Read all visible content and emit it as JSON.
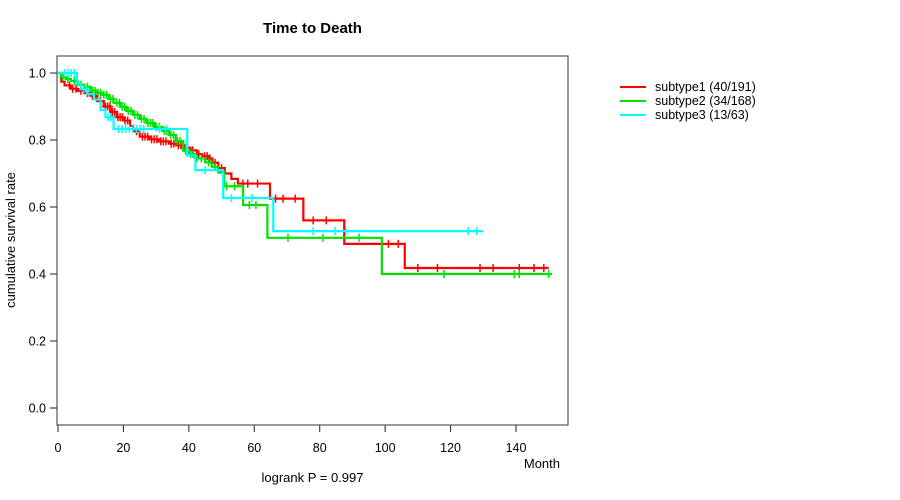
{
  "chart_data": {
    "type": "line",
    "variant": "kaplan-meier-step",
    "title": "Time to Death",
    "xlabel": "Month",
    "ylabel": "cumulative survival rate",
    "annotation": "logrank P = 0.997",
    "x_ticks": [
      0,
      20,
      40,
      60,
      80,
      100,
      120,
      140
    ],
    "y_ticks": [
      "0.0",
      "0.2",
      "0.4",
      "0.6",
      "0.8",
      "1.0"
    ],
    "xlim": [
      0,
      156
    ],
    "ylim": [
      -0.05,
      1.05
    ],
    "grid": false,
    "legend_position": "right-outside",
    "colors": {
      "axis_box": "#555555",
      "tick": "#333333",
      "text": "#000000",
      "background": "#ffffff"
    },
    "series": [
      {
        "name": "subtype1 (40/191)",
        "color": "#ff0000",
        "end_x": 150,
        "steps_x": [
          0,
          1,
          2,
          4,
          6,
          8,
          10,
          12,
          14,
          16,
          18,
          20,
          22,
          23,
          25,
          28,
          31,
          34,
          36.5,
          38.5,
          40.5,
          42.4,
          44,
          46,
          47.2,
          49,
          51,
          53,
          55,
          64.8,
          75,
          87.5,
          106
        ],
        "steps_y": [
          1.0,
          0.974,
          0.963,
          0.953,
          0.947,
          0.94,
          0.932,
          0.916,
          0.9,
          0.884,
          0.868,
          0.858,
          0.842,
          0.826,
          0.81,
          0.802,
          0.796,
          0.789,
          0.784,
          0.777,
          0.769,
          0.758,
          0.752,
          0.745,
          0.732,
          0.716,
          0.7,
          0.684,
          0.67,
          0.625,
          0.56,
          0.49,
          0.418
        ],
        "censor_x": [
          3.5,
          4.5,
          5.5,
          7,
          9,
          10.5,
          11.5,
          13,
          14.5,
          15.2,
          15.9,
          16.6,
          17.3,
          18.3,
          19,
          19.7,
          20.5,
          21.3,
          24,
          25.8,
          26.6,
          27.4,
          28.6,
          29.4,
          30.2,
          31.4,
          32.2,
          33,
          34.6,
          35.4,
          36.8,
          37.6,
          38.8,
          39.6,
          41.2,
          43,
          44.8,
          45.6,
          46.4,
          48,
          50,
          56.5,
          58,
          61,
          66.5,
          68.8,
          72.5,
          78,
          82,
          101,
          104,
          110,
          116,
          129,
          133,
          141,
          145.5,
          148.5
        ]
      },
      {
        "name": "subtype2 (34/168)",
        "color": "#00e100",
        "end_x": 151,
        "steps_x": [
          0,
          1,
          2.5,
          4,
          6,
          8,
          10,
          12,
          13.5,
          15.5,
          17,
          19,
          21,
          23,
          25,
          27,
          29.5,
          32,
          34,
          36,
          38.3,
          40,
          42,
          45,
          47,
          49,
          50.8,
          56.6,
          64,
          99
        ],
        "steps_y": [
          1.0,
          0.988,
          0.982,
          0.976,
          0.965,
          0.959,
          0.947,
          0.941,
          0.935,
          0.923,
          0.911,
          0.899,
          0.887,
          0.875,
          0.863,
          0.851,
          0.839,
          0.827,
          0.815,
          0.797,
          0.768,
          0.758,
          0.745,
          0.733,
          0.72,
          0.703,
          0.662,
          0.606,
          0.508,
          0.4
        ],
        "censor_x": [
          1.5,
          3,
          5,
          7,
          9,
          10.5,
          11.3,
          12.2,
          13,
          14,
          14.8,
          16,
          16.8,
          18,
          18.8,
          19.6,
          20.4,
          21.5,
          22.3,
          23.5,
          24.3,
          25.5,
          26.3,
          27.5,
          28.3,
          29,
          30,
          31,
          32.5,
          33.3,
          34.5,
          35.3,
          36.5,
          37.3,
          39,
          40.5,
          41.3,
          42.5,
          43.8,
          46,
          48,
          51.5,
          54,
          58.5,
          60.5,
          70.3,
          81,
          92,
          118,
          139.5,
          141,
          150
        ]
      },
      {
        "name": "subtype3 (13/63)",
        "color": "#00ffff",
        "end_x": 130,
        "steps_x": [
          0,
          5.8,
          7,
          9,
          11,
          13,
          14.5,
          17,
          39.5,
          42,
          50.5,
          65.8
        ],
        "steps_y": [
          1.0,
          0.968,
          0.952,
          0.937,
          0.921,
          0.89,
          0.868,
          0.833,
          0.754,
          0.71,
          0.627,
          0.528
        ],
        "censor_x": [
          2,
          3,
          4,
          5,
          7.8,
          8.6,
          15.3,
          16.1,
          18.5,
          19.6,
          20.7,
          21.8,
          22.9,
          24,
          25.1,
          26.2,
          31,
          33,
          45,
          53,
          59.3,
          78,
          84.7,
          88,
          125.4,
          128
        ]
      }
    ]
  }
}
